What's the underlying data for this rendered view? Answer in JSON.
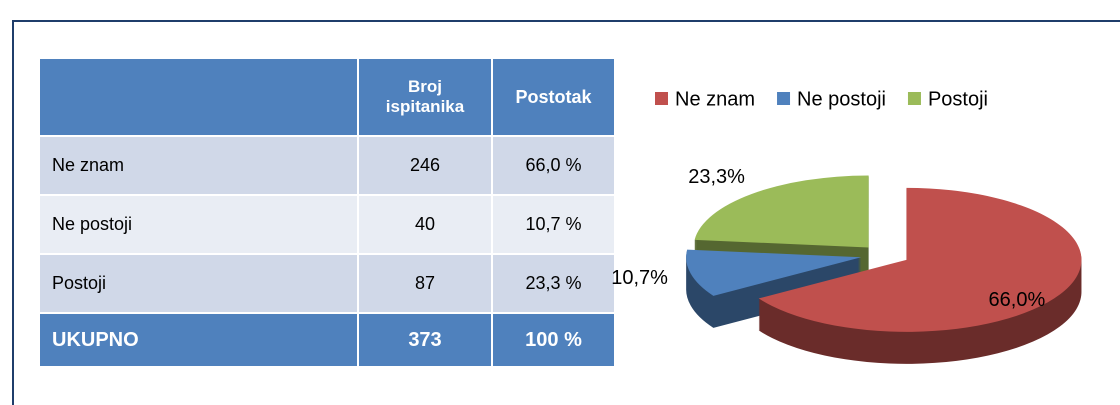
{
  "table": {
    "header": [
      "",
      "Broj ispitanika",
      "Postotak"
    ],
    "rows": [
      [
        "Ne znam",
        "246",
        "66,0 %"
      ],
      [
        "Ne postoji",
        "40",
        "10,7 %"
      ],
      [
        "Postoji",
        "87",
        "23,3 %"
      ]
    ],
    "total": [
      "UKUPNO",
      "373",
      "100 %"
    ]
  },
  "chart_data": {
    "type": "pie",
    "three_d": true,
    "exploded": true,
    "categories": [
      "Ne znam",
      "Ne postoji",
      "Postoji"
    ],
    "values": [
      66.0,
      10.7,
      23.3
    ],
    "value_labels": [
      "66,0%",
      "10,7%",
      "23,3%"
    ],
    "colors": [
      "#c0504d",
      "#4f81bd",
      "#9bbb59"
    ],
    "legend": "top"
  }
}
